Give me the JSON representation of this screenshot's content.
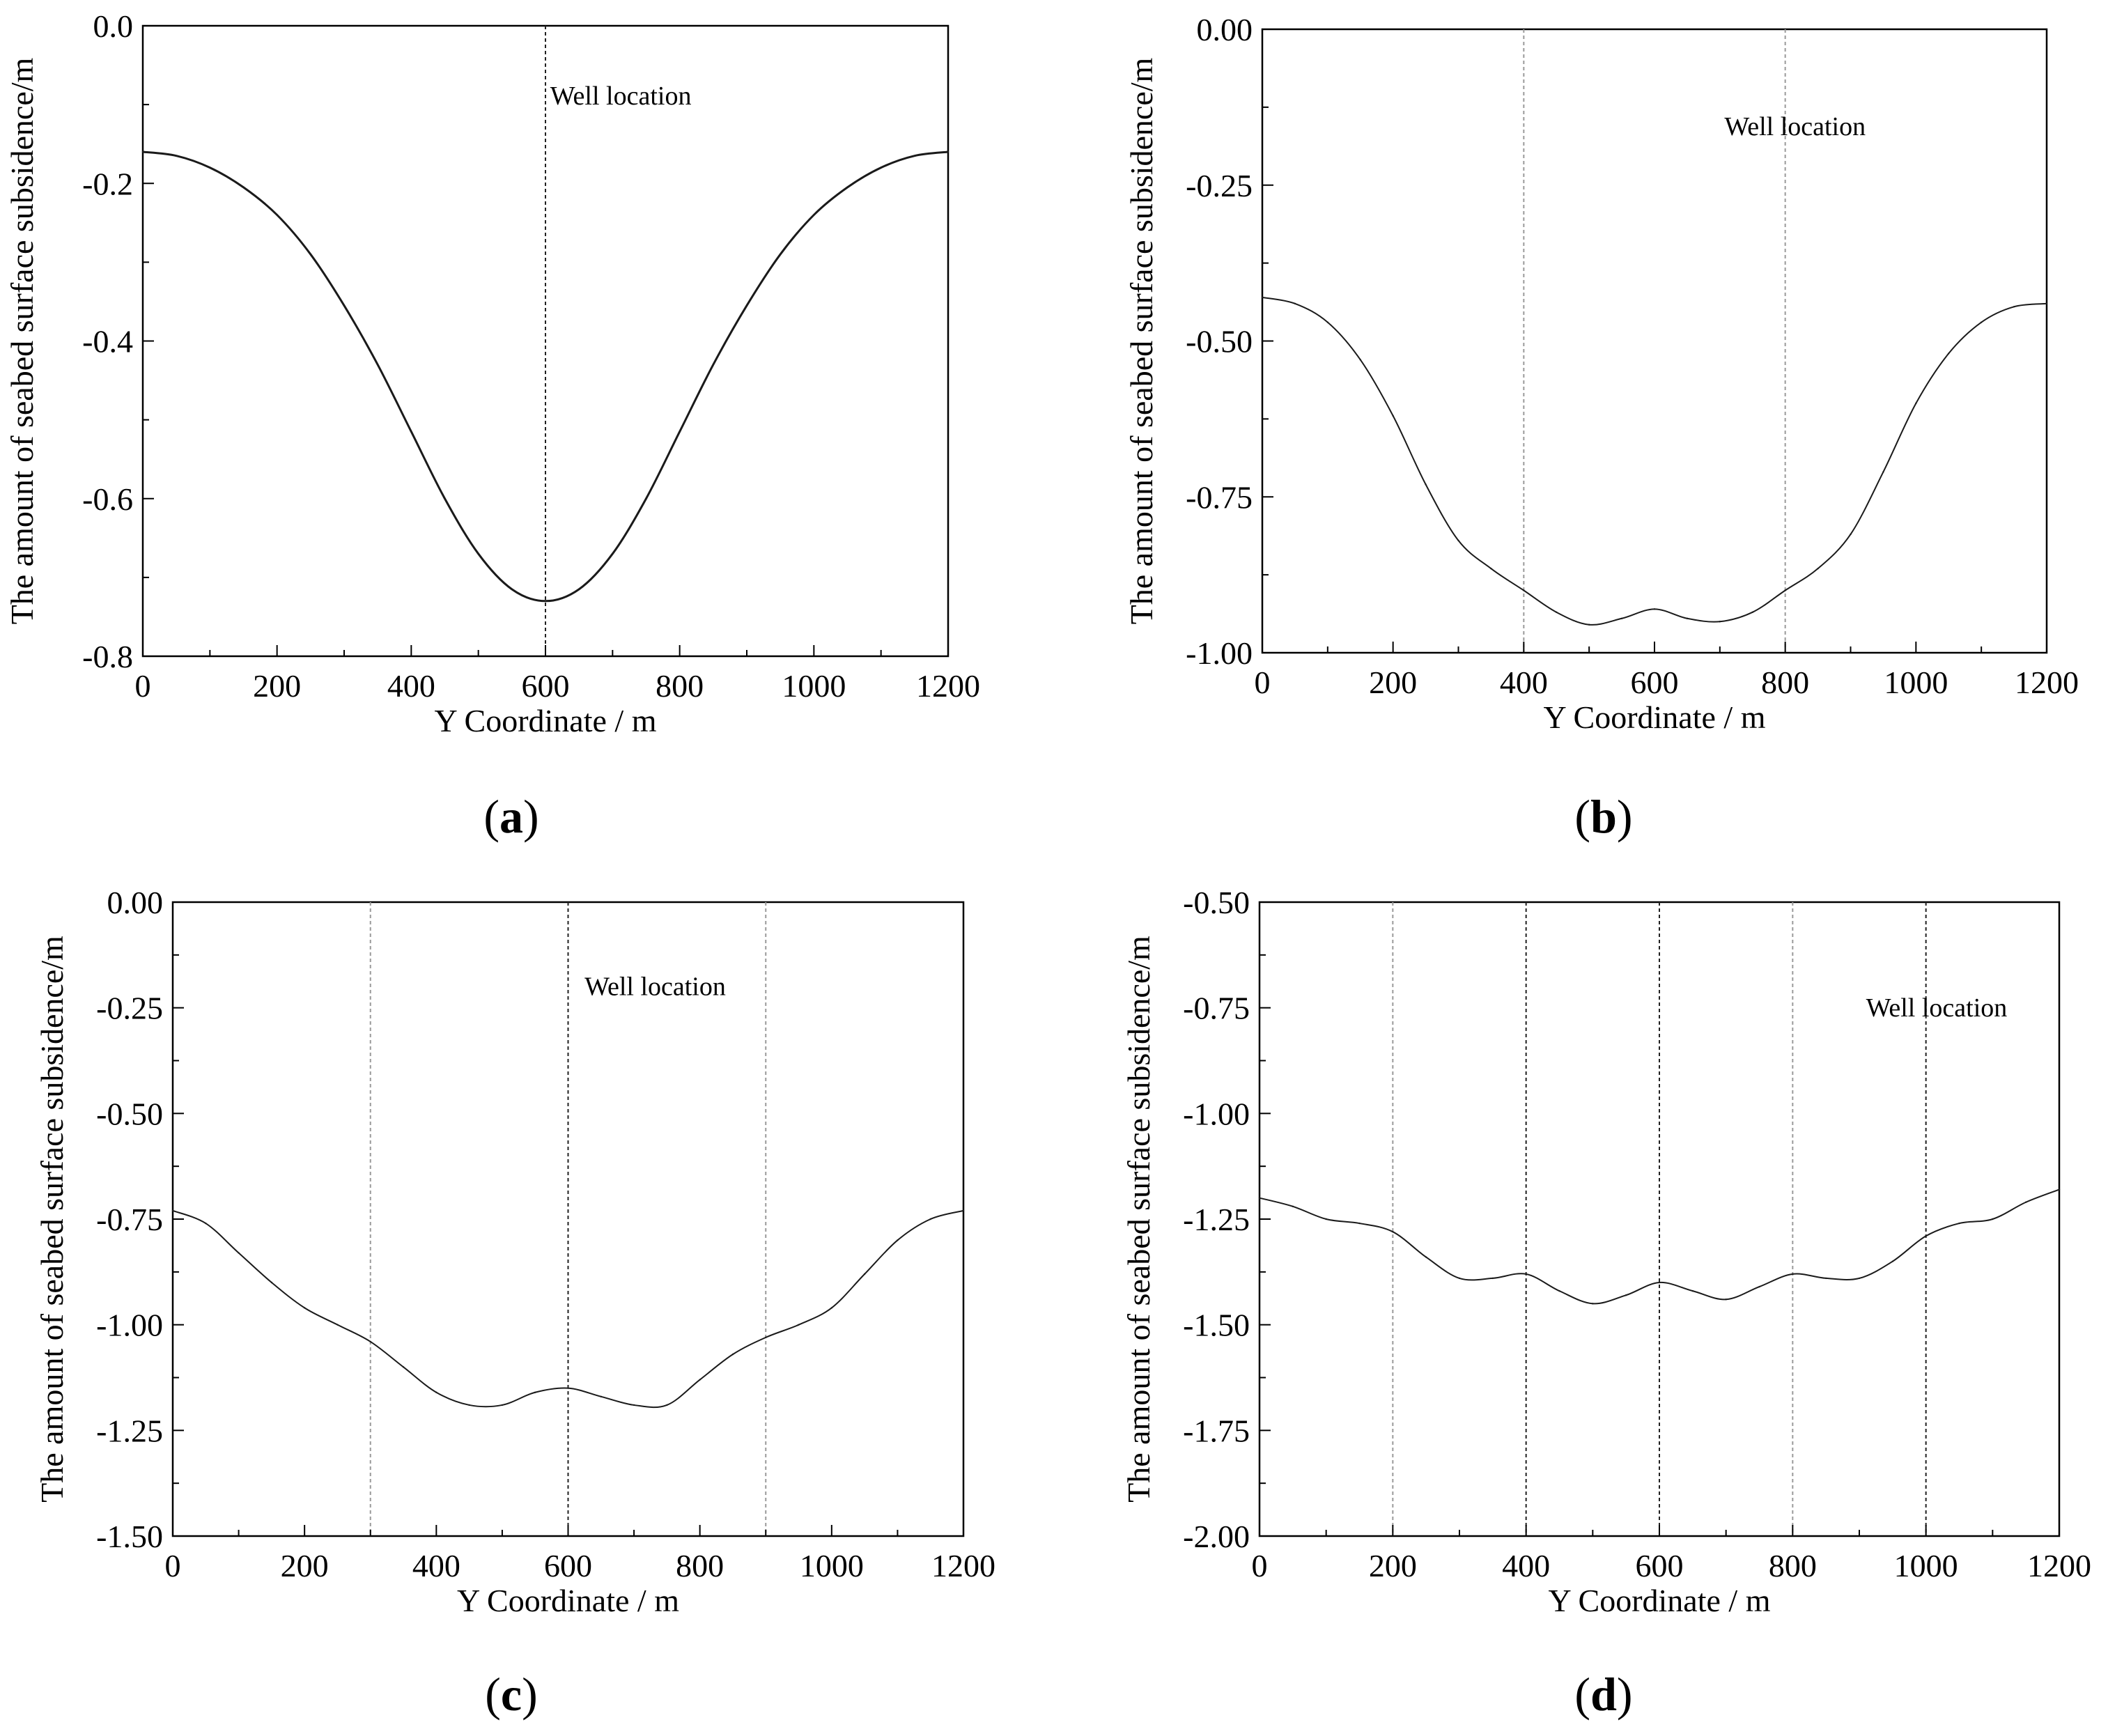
{
  "figure": {
    "panels": [
      "a",
      "b",
      "c",
      "d"
    ]
  },
  "chart_data": [
    {
      "id": "a",
      "type": "line",
      "panel_label": "a",
      "xlabel": "Y Coordinate / m",
      "ylabel": "The amount of seabed surface subsidence/m",
      "xlim": [
        0,
        1200
      ],
      "ylim": [
        -0.8,
        0.0
      ],
      "xticks": [
        0,
        200,
        400,
        600,
        800,
        1000,
        1200
      ],
      "xtick_labels": [
        "0",
        "200",
        "400",
        "600",
        "800",
        "1000",
        "1200"
      ],
      "yticks": [
        0.0,
        -0.2,
        -0.4,
        -0.6,
        -0.8
      ],
      "ytick_labels": [
        "0.0",
        "-0.2",
        "-0.4",
        "-0.6",
        "-0.8"
      ],
      "annotation": "Well location",
      "annotation_at": {
        "x": 607,
        "y": -0.1
      },
      "well_lines": [
        {
          "x": 600,
          "style": "dark"
        }
      ],
      "series": [
        {
          "name": "subsidence",
          "x": [
            0,
            50,
            100,
            150,
            200,
            250,
            300,
            350,
            400,
            450,
            500,
            550,
            600,
            650,
            700,
            750,
            800,
            850,
            900,
            950,
            1000,
            1050,
            1100,
            1150,
            1200
          ],
          "y": [
            -0.16,
            -0.165,
            -0.18,
            -0.205,
            -0.24,
            -0.29,
            -0.355,
            -0.43,
            -0.515,
            -0.6,
            -0.67,
            -0.715,
            -0.73,
            -0.715,
            -0.67,
            -0.6,
            -0.515,
            -0.43,
            -0.355,
            -0.29,
            -0.24,
            -0.205,
            -0.18,
            -0.165,
            -0.16
          ]
        }
      ]
    },
    {
      "id": "b",
      "type": "line",
      "panel_label": "b",
      "xlabel": "Y Coordinate / m",
      "ylabel": "The amount of seabed surface subsidence/m",
      "xlim": [
        0,
        1200
      ],
      "ylim": [
        -1.0,
        0.0
      ],
      "xticks": [
        0,
        200,
        400,
        600,
        800,
        1000,
        1200
      ],
      "xtick_labels": [
        "0",
        "200",
        "400",
        "600",
        "800",
        "1000",
        "1200"
      ],
      "yticks": [
        0.0,
        -0.25,
        -0.5,
        -0.75,
        -1.0
      ],
      "ytick_labels": [
        "0.00",
        "-0.25",
        "-0.50",
        "-0.75",
        "-1.00"
      ],
      "annotation": "Well location",
      "annotation_at": {
        "x": 707,
        "y": -0.17
      },
      "well_lines": [
        {
          "x": 400,
          "style": "light"
        },
        {
          "x": 800,
          "style": "light"
        }
      ],
      "series": [
        {
          "name": "subsidence",
          "x": [
            0,
            50,
            100,
            150,
            200,
            250,
            300,
            350,
            400,
            450,
            500,
            550,
            600,
            650,
            700,
            750,
            800,
            850,
            900,
            950,
            1000,
            1050,
            1100,
            1150,
            1200
          ],
          "y": [
            -0.43,
            -0.44,
            -0.47,
            -0.53,
            -0.62,
            -0.73,
            -0.82,
            -0.865,
            -0.9,
            -0.935,
            -0.955,
            -0.945,
            -0.93,
            -0.945,
            -0.95,
            -0.935,
            -0.9,
            -0.865,
            -0.81,
            -0.71,
            -0.6,
            -0.52,
            -0.47,
            -0.445,
            -0.44
          ]
        }
      ]
    },
    {
      "id": "c",
      "type": "line",
      "panel_label": "c",
      "xlabel": "Y Coordinate / m",
      "ylabel": "The amount of seabed surface subsidence/m",
      "xlim": [
        0,
        1200
      ],
      "ylim": [
        -1.5,
        0.0
      ],
      "xticks": [
        0,
        200,
        400,
        600,
        800,
        1000,
        1200
      ],
      "xtick_labels": [
        "0",
        "200",
        "400",
        "600",
        "800",
        "1000",
        "1200"
      ],
      "yticks": [
        0.0,
        -0.25,
        -0.5,
        -0.75,
        -1.0,
        -1.25,
        -1.5
      ],
      "ytick_labels": [
        "0.00",
        "-0.25",
        "-0.50",
        "-0.75",
        "-1.00",
        "-1.25",
        "-1.50"
      ],
      "annotation": "Well location",
      "annotation_at": {
        "x": 625,
        "y": -0.22
      },
      "well_lines": [
        {
          "x": 300,
          "style": "light"
        },
        {
          "x": 600,
          "style": "dark"
        },
        {
          "x": 900,
          "style": "light"
        }
      ],
      "series": [
        {
          "name": "subsidence",
          "x": [
            0,
            50,
            100,
            150,
            200,
            250,
            300,
            350,
            400,
            450,
            500,
            550,
            600,
            650,
            700,
            750,
            800,
            850,
            900,
            950,
            1000,
            1050,
            1100,
            1150,
            1200
          ],
          "y": [
            -0.73,
            -0.76,
            -0.83,
            -0.9,
            -0.96,
            -1.0,
            -1.04,
            -1.1,
            -1.16,
            -1.19,
            -1.19,
            -1.16,
            -1.15,
            -1.17,
            -1.19,
            -1.19,
            -1.13,
            -1.07,
            -1.03,
            -1.0,
            -0.96,
            -0.88,
            -0.8,
            -0.75,
            -0.73
          ]
        }
      ]
    },
    {
      "id": "d",
      "type": "line",
      "panel_label": "d",
      "xlabel": "Y Coordinate / m",
      "ylabel": "The amount of seabed surface subsidence/m",
      "xlim": [
        0,
        1200
      ],
      "ylim": [
        -2.0,
        -0.5
      ],
      "xticks": [
        0,
        200,
        400,
        600,
        800,
        1000,
        1200
      ],
      "xtick_labels": [
        "0",
        "200",
        "400",
        "600",
        "800",
        "1000",
        "1200"
      ],
      "yticks": [
        -0.5,
        -0.75,
        -1.0,
        -1.25,
        -1.5,
        -1.75,
        -2.0
      ],
      "ytick_labels": [
        "-0.50",
        "-0.75",
        "-1.00",
        "-1.25",
        "-1.50",
        "-1.75",
        "-2.00"
      ],
      "annotation": "Well location",
      "annotation_at": {
        "x": 910,
        "y": -0.77
      },
      "well_lines": [
        {
          "x": 200,
          "style": "light"
        },
        {
          "x": 400,
          "style": "dark"
        },
        {
          "x": 600,
          "style": "dark"
        },
        {
          "x": 800,
          "style": "light"
        },
        {
          "x": 1000,
          "style": "dark"
        }
      ],
      "series": [
        {
          "name": "subsidence",
          "x": [
            0,
            50,
            100,
            150,
            200,
            250,
            300,
            350,
            400,
            450,
            500,
            550,
            600,
            650,
            700,
            750,
            800,
            850,
            900,
            950,
            1000,
            1050,
            1100,
            1150,
            1200
          ],
          "y": [
            -1.2,
            -1.22,
            -1.25,
            -1.26,
            -1.28,
            -1.34,
            -1.39,
            -1.39,
            -1.38,
            -1.42,
            -1.45,
            -1.43,
            -1.4,
            -1.42,
            -1.44,
            -1.41,
            -1.38,
            -1.39,
            -1.39,
            -1.35,
            -1.29,
            -1.26,
            -1.25,
            -1.21,
            -1.18
          ]
        }
      ]
    }
  ]
}
